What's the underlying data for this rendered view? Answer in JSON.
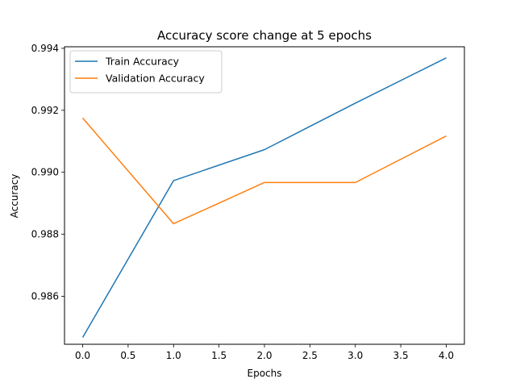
{
  "chart_data": {
    "type": "line",
    "title": "Accuracy score change at 5 epochs",
    "xlabel": "Epochs",
    "ylabel": "Accuracy",
    "x": [
      0,
      1,
      2,
      3,
      4
    ],
    "xlim": [
      -0.2,
      4.2
    ],
    "ylim": [
      0.98445,
      0.99405
    ],
    "x_ticks": [
      "0.0",
      "0.5",
      "1.0",
      "1.5",
      "2.0",
      "2.5",
      "3.0",
      "3.5",
      "4.0"
    ],
    "x_tick_values": [
      0,
      0.5,
      1,
      1.5,
      2,
      2.5,
      3,
      3.5,
      4
    ],
    "y_ticks": [
      "0.986",
      "0.988",
      "0.990",
      "0.992",
      "0.994"
    ],
    "y_tick_values": [
      0.986,
      0.988,
      0.99,
      0.992,
      0.994
    ],
    "grid": false,
    "legend": "upper-left",
    "series": [
      {
        "name": "Train Accuracy",
        "color": "#1f77b4",
        "values": [
          0.98467,
          0.98973,
          0.99073,
          0.99223,
          0.99369
        ]
      },
      {
        "name": "Validation Accuracy",
        "color": "#ff7f0e",
        "values": [
          0.99175,
          0.98834,
          0.98967,
          0.98967,
          0.99117
        ]
      }
    ]
  }
}
